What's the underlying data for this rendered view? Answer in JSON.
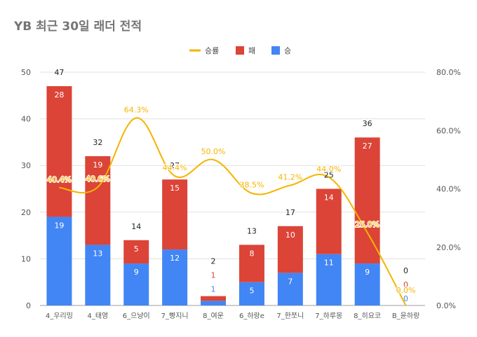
{
  "chart_data": {
    "type": "bar",
    "title": "YB 최근 30일 래더 전적",
    "categories": [
      "4_우리밍",
      "4_태영",
      "6_으냥이",
      "7_빵지니",
      "8_여운",
      "6_하랑e",
      "7_한쪼니",
      "7_하루몽",
      "8_히요코",
      "B_윤하랑"
    ],
    "series": [
      {
        "name": "승",
        "type": "bar",
        "stack": "total",
        "color": "#4285f4",
        "values": [
          19,
          13,
          9,
          12,
          1,
          5,
          7,
          11,
          9,
          0
        ]
      },
      {
        "name": "패",
        "type": "bar",
        "stack": "total",
        "color": "#db4437",
        "values": [
          28,
          19,
          5,
          15,
          1,
          8,
          10,
          14,
          27,
          0
        ]
      },
      {
        "name": "승률",
        "type": "line",
        "axis": "right",
        "color": "#f4b400",
        "values": [
          40.4,
          40.6,
          64.3,
          44.4,
          50.0,
          38.5,
          41.2,
          44.0,
          25.0,
          0.0
        ]
      }
    ],
    "totals": [
      47,
      32,
      14,
      27,
      2,
      13,
      17,
      25,
      36,
      0
    ],
    "rate_labels": [
      "40.4%",
      "40.6%",
      "64.3%",
      "44.4%",
      "50.0%",
      "38.5%",
      "41.2%",
      "44.0%",
      "25.0%",
      "0.0%"
    ],
    "ylim": [
      0,
      50
    ],
    "yticks": [
      "0",
      "10",
      "20",
      "30",
      "40",
      "50"
    ],
    "y2lim": [
      0,
      80
    ],
    "y2ticks": [
      "0.0%",
      "20.0%",
      "40.0%",
      "60.0%",
      "80.0%"
    ],
    "legend_position": "top-center",
    "legend": [
      "승률",
      "패",
      "승"
    ],
    "grid": true
  }
}
